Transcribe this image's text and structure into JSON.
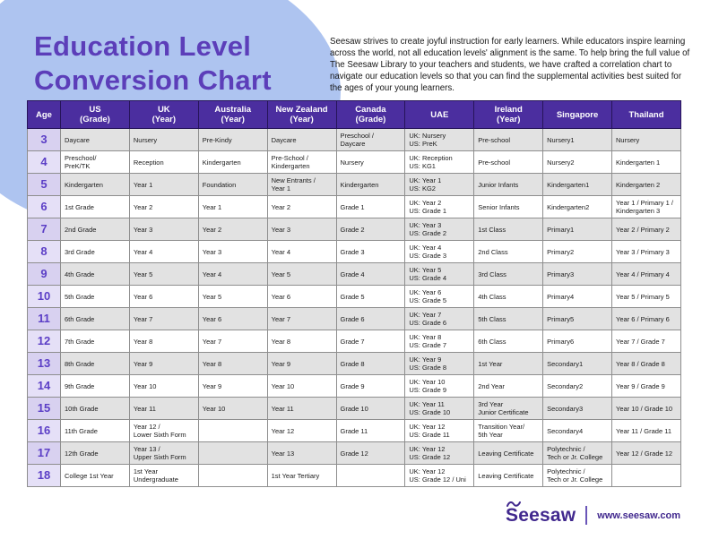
{
  "page": {
    "title": "Education Level\nConversion Chart",
    "intro": "Seesaw strives to create joyful instruction for early learners. While educators inspire learning across the world, not all education levels' alignment is the same. To help bring the full value of The Seesaw Library to your teachers and students, we have crafted a correlation chart to navigate our education levels so that you can find the supplemental activities best suited for the ages of your young learners."
  },
  "colors": {
    "header_purple": "#4B2E9F",
    "title_purple": "#5C3EB9",
    "blob_blue": "#AEC4F0",
    "stripe_gray": "#E2E2E2",
    "age_lavender": "#D8D1F0",
    "brand_purple": "#41288E"
  },
  "table": {
    "columns": [
      {
        "id": "age",
        "label": "Age"
      },
      {
        "id": "us",
        "label": "US\n(Grade)"
      },
      {
        "id": "uk",
        "label": "UK\n(Year)"
      },
      {
        "id": "australia",
        "label": "Australia\n(Year)"
      },
      {
        "id": "new-zealand",
        "label": "New Zealand\n(Year)"
      },
      {
        "id": "canada",
        "label": "Canada\n(Grade)"
      },
      {
        "id": "uae",
        "label": "UAE"
      },
      {
        "id": "ireland",
        "label": "Ireland\n(Year)"
      },
      {
        "id": "singapore",
        "label": "Singapore"
      },
      {
        "id": "thailand",
        "label": "Thailand"
      }
    ],
    "rows": [
      {
        "age": "3",
        "cells": [
          "Daycare",
          "Nursery",
          "Pre-Kindy",
          "Daycare",
          "Preschool /\nDaycare",
          "UK: Nursery\nUS: PreK",
          "Pre-school",
          "Nursery1",
          "Nursery"
        ]
      },
      {
        "age": "4",
        "cells": [
          "Preschool/\nPreK/TK",
          "Reception",
          "Kindergarten",
          "Pre-School /\nKindergarten",
          "Nursery",
          "UK: Reception\nUS: KG1",
          "Pre-school",
          "Nursery2",
          "Kindergarten 1"
        ]
      },
      {
        "age": "5",
        "cells": [
          "Kindergarten",
          "Year 1",
          "Foundation",
          "New Entrants /\nYear 1",
          "Kindergarten",
          "UK: Year 1\nUS: KG2",
          "Junior Infants",
          "Kindergarten1",
          "Kindergarten 2"
        ]
      },
      {
        "age": "6",
        "cells": [
          "1st Grade",
          "Year 2",
          "Year 1",
          "Year 2",
          "Grade 1",
          "UK: Year 2\nUS: Grade 1",
          "Senior Infants",
          "Kindergarten2",
          "Year 1 / Primary 1 /\nKindergarten 3"
        ]
      },
      {
        "age": "7",
        "cells": [
          "2nd Grade",
          "Year 3",
          "Year 2",
          "Year 3",
          "Grade 2",
          "UK: Year 3\nUS: Grade 2",
          "1st Class",
          "Primary1",
          "Year 2 / Primary 2"
        ]
      },
      {
        "age": "8",
        "cells": [
          "3rd Grade",
          "Year 4",
          "Year 3",
          "Year 4",
          "Grade 3",
          "UK: Year 4\nUS: Grade 3",
          "2nd Class",
          "Primary2",
          "Year 3 / Primary 3"
        ]
      },
      {
        "age": "9",
        "cells": [
          "4th Grade",
          "Year 5",
          "Year 4",
          "Year 5",
          "Grade 4",
          "UK: Year 5\nUS: Grade 4",
          "3rd Class",
          "Primary3",
          "Year 4 / Primary 4"
        ]
      },
      {
        "age": "10",
        "cells": [
          "5th Grade",
          "Year 6",
          "Year 5",
          "Year 6",
          "Grade 5",
          "UK: Year 6\nUS: Grade 5",
          "4th Class",
          "Primary4",
          "Year 5 / Primary 5"
        ]
      },
      {
        "age": "11",
        "cells": [
          "6th Grade",
          "Year 7",
          "Year 6",
          "Year 7",
          "Grade 6",
          "UK: Year 7\nUS: Grade 6",
          "5th Class",
          "Primary5",
          "Year 6 / Primary 6"
        ]
      },
      {
        "age": "12",
        "cells": [
          "7th Grade",
          "Year 8",
          "Year 7",
          "Year 8",
          "Grade 7",
          "UK: Year 8\nUS: Grade 7",
          "6th Class",
          "Primary6",
          "Year 7 / Grade 7"
        ]
      },
      {
        "age": "13",
        "cells": [
          "8th Grade",
          "Year 9",
          "Year 8",
          "Year 9",
          "Grade 8",
          "UK: Year 9\nUS: Grade 8",
          "1st Year",
          "Secondary1",
          "Year 8 / Grade 8"
        ]
      },
      {
        "age": "14",
        "cells": [
          "9th Grade",
          "Year 10",
          "Year 9",
          "Year 10",
          "Grade 9",
          "UK: Year 10\nUS: Grade 9",
          "2nd Year",
          "Secondary2",
          "Year 9 / Grade 9"
        ]
      },
      {
        "age": "15",
        "cells": [
          "10th Grade",
          "Year 11",
          "Year 10",
          "Year 11",
          "Grade 10",
          "UK: Year 11\nUS: Grade 10",
          "3rd Year\nJunior Certificate",
          "Secondary3",
          "Year 10 / Grade 10"
        ]
      },
      {
        "age": "16",
        "cells": [
          "11th Grade",
          "Year 12 /\nLower Sixth Form",
          "",
          "Year 12",
          "Grade 11",
          "UK: Year 12\nUS: Grade 11",
          "Transition Year/\n5th Year",
          "Secondary4",
          "Year 11 / Grade 11"
        ]
      },
      {
        "age": "17",
        "cells": [
          "12th Grade",
          "Year 13 /\nUpper Sixth Form",
          "",
          "Year 13",
          "Grade 12",
          "UK: Year 12\nUS: Grade 12",
          "Leaving Certificate",
          "Polytechnic /\nTech or Jr. College",
          "Year 12 / Grade 12"
        ]
      },
      {
        "age": "18",
        "cells": [
          "College 1st Year",
          "1st Year\nUndergraduate",
          "",
          "1st Year Tertiary",
          "",
          "UK: Year 12\nUS: Grade 12 / Uni",
          "Leaving Certificate",
          "Polytechnic /\nTech or Jr. College",
          ""
        ]
      }
    ]
  },
  "footer": {
    "logo_text": "Seesaw",
    "url": "www.seesaw.com"
  }
}
